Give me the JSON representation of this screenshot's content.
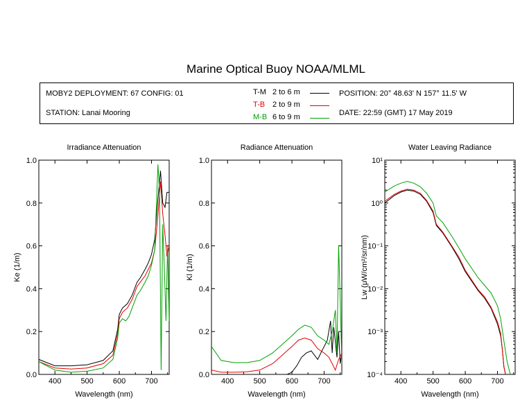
{
  "title": "Marine Optical Buoy NOAA/MLML",
  "header": {
    "deployment": "MOBY2 DEPLOYMENT: 67 CONFIG: 01",
    "station": "STATION: Lanai Mooring",
    "position": "POSITION: 20° 48.63' N   157° 11.5' W",
    "date": "DATE: 22:59 (GMT) 17 May 2019",
    "legend": [
      {
        "code": "T-M",
        "range": "2 to 6  m",
        "color": "#000000"
      },
      {
        "code": "T-B",
        "range": "2 to 9  m",
        "color": "#e00000"
      },
      {
        "code": "M-B",
        "range": "6 to 9  m",
        "color": "#00a000"
      }
    ]
  },
  "colors": {
    "T-M": "#000000",
    "T-B": "#e00000",
    "M-B": "#00a000"
  },
  "chart_data": [
    {
      "type": "line",
      "title": "Irradiance Attenuation",
      "xlabel": "Wavelength (nm)",
      "ylabel": "Ke  (1/m)",
      "xlim": [
        350,
        755
      ],
      "ylim": [
        0,
        1.0
      ],
      "xticks": [
        400,
        500,
        600,
        700
      ],
      "yticks": [
        0.0,
        0.2,
        0.4,
        0.6,
        0.8,
        1.0
      ],
      "ytick_labels": [
        "0.0",
        "0.2",
        "0.4",
        "0.6",
        "0.8",
        "1.0"
      ],
      "series": [
        {
          "name": "T-M",
          "x": [
            350,
            400,
            450,
            500,
            550,
            580,
            595,
            600,
            610,
            625,
            640,
            655,
            665,
            680,
            690,
            700,
            710,
            720,
            728,
            735,
            742,
            748,
            755
          ],
          "y": [
            0.07,
            0.04,
            0.04,
            0.045,
            0.065,
            0.11,
            0.21,
            0.28,
            0.31,
            0.33,
            0.37,
            0.43,
            0.45,
            0.49,
            0.52,
            0.56,
            0.63,
            0.82,
            0.95,
            0.8,
            0.78,
            0.85,
            0.85
          ]
        },
        {
          "name": "T-B",
          "x": [
            350,
            400,
            450,
            500,
            550,
            580,
            595,
            600,
            610,
            625,
            640,
            655,
            665,
            680,
            690,
            700,
            710,
            720,
            728,
            735,
            742,
            748,
            755
          ],
          "y": [
            0.06,
            0.03,
            0.025,
            0.03,
            0.05,
            0.09,
            0.19,
            0.26,
            0.29,
            0.31,
            0.35,
            0.41,
            0.43,
            0.46,
            0.49,
            0.52,
            0.58,
            0.74,
            0.9,
            0.75,
            0.65,
            0.55,
            0.6
          ]
        },
        {
          "name": "M-B",
          "x": [
            350,
            400,
            450,
            500,
            550,
            580,
            595,
            600,
            610,
            620,
            630,
            640,
            655,
            665,
            680,
            690,
            700,
            710,
            720,
            725,
            730,
            735,
            740,
            745,
            750,
            755
          ],
          "y": [
            0.06,
            0.02,
            0.01,
            0.015,
            0.03,
            0.07,
            0.17,
            0.24,
            0.26,
            0.25,
            0.27,
            0.31,
            0.37,
            0.39,
            0.43,
            0.46,
            0.51,
            0.58,
            0.98,
            0.85,
            0.02,
            0.7,
            0.5,
            0.25,
            0.6,
            0.25
          ]
        }
      ]
    },
    {
      "type": "line",
      "title": "Radiance Attenuation",
      "xlabel": "Wavelength (nm)",
      "ylabel": "Kl  (1/m)",
      "xlim": [
        350,
        755
      ],
      "ylim": [
        0,
        1.0
      ],
      "xticks": [
        400,
        500,
        600,
        700
      ],
      "yticks": [
        0.0,
        0.2,
        0.4,
        0.6,
        0.8,
        1.0
      ],
      "ytick_labels": [
        "0.0",
        "0.2",
        "0.4",
        "0.6",
        "0.8",
        "1.0"
      ],
      "series": [
        {
          "name": "T-M",
          "x": [
            585,
            600,
            615,
            630,
            645,
            660,
            670,
            680,
            690,
            700,
            710,
            720,
            725,
            730,
            735,
            740,
            745,
            750,
            755
          ],
          "y": [
            0.0,
            0.01,
            0.04,
            0.08,
            0.1,
            0.11,
            0.09,
            0.07,
            0.1,
            0.13,
            0.16,
            0.25,
            0.1,
            0.22,
            0.15,
            0.08,
            0.2,
            0.05,
            0.1
          ]
        },
        {
          "name": "T-B",
          "x": [
            350,
            380,
            420,
            460,
            500,
            540,
            570,
            600,
            620,
            640,
            660,
            680,
            700,
            715,
            725,
            735,
            745,
            755
          ],
          "y": [
            0.02,
            0.01,
            0.01,
            0.012,
            0.02,
            0.05,
            0.09,
            0.13,
            0.16,
            0.17,
            0.16,
            0.12,
            0.1,
            0.08,
            0.05,
            0.02,
            0.07,
            0.1
          ]
        },
        {
          "name": "M-B",
          "x": [
            350,
            380,
            420,
            460,
            500,
            540,
            570,
            600,
            620,
            640,
            660,
            680,
            700,
            715,
            725,
            735,
            740,
            745,
            750,
            755
          ],
          "y": [
            0.13,
            0.065,
            0.055,
            0.055,
            0.065,
            0.1,
            0.14,
            0.18,
            0.21,
            0.23,
            0.22,
            0.18,
            0.16,
            0.14,
            0.2,
            0.3,
            0.1,
            0.6,
            0.35,
            0.05
          ]
        }
      ]
    },
    {
      "type": "line",
      "title": "Water Leaving Radiance",
      "xlabel": "Wavelength (nm)",
      "ylabel": "Lw  (μW/cm²/sr/nm)",
      "xscale": "linear",
      "yscale": "log",
      "xlim": [
        350,
        755
      ],
      "ylim": [
        0.0001,
        10
      ],
      "xticks": [
        400,
        500,
        600,
        700
      ],
      "yticks": [
        0.0001,
        0.001,
        0.01,
        0.1,
        1,
        10
      ],
      "ytick_labels": [
        "10⁻⁴",
        "10⁻³",
        "10⁻²",
        "10⁻¹",
        "10⁰",
        "10¹"
      ],
      "series": [
        {
          "name": "T-M",
          "x": [
            350,
            380,
            400,
            420,
            440,
            460,
            480,
            500,
            510,
            530,
            560,
            580,
            600,
            620,
            640,
            660,
            680,
            700,
            710,
            715,
            720,
            725
          ],
          "y": [
            1.0,
            1.5,
            1.8,
            2.0,
            1.9,
            1.6,
            1.1,
            0.6,
            0.3,
            0.2,
            0.09,
            0.05,
            0.025,
            0.015,
            0.009,
            0.006,
            0.0035,
            0.0015,
            0.0008,
            0.0004,
            0.00015,
            0.0001
          ]
        },
        {
          "name": "T-B",
          "x": [
            350,
            380,
            400,
            420,
            440,
            460,
            480,
            500,
            510,
            530,
            560,
            580,
            600,
            620,
            640,
            660,
            680,
            700,
            710,
            715,
            720,
            725
          ],
          "y": [
            1.1,
            1.6,
            1.9,
            2.1,
            2.0,
            1.7,
            1.15,
            0.65,
            0.32,
            0.21,
            0.095,
            0.055,
            0.027,
            0.016,
            0.0095,
            0.0065,
            0.0037,
            0.0017,
            0.0009,
            0.0004,
            0.00015,
            0.0001
          ]
        },
        {
          "name": "M-B",
          "x": [
            350,
            380,
            400,
            420,
            440,
            460,
            480,
            500,
            510,
            530,
            560,
            580,
            600,
            620,
            640,
            660,
            680,
            700,
            710,
            720,
            730,
            740
          ],
          "y": [
            1.8,
            2.5,
            2.9,
            3.2,
            2.9,
            2.4,
            1.7,
            1.0,
            0.5,
            0.35,
            0.16,
            0.09,
            0.05,
            0.03,
            0.018,
            0.012,
            0.008,
            0.004,
            0.002,
            0.0006,
            0.0002,
            0.0001
          ]
        }
      ]
    }
  ]
}
